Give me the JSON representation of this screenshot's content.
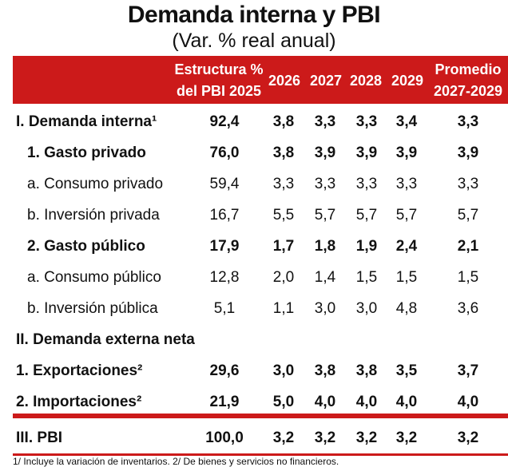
{
  "title": "Demanda interna y PBI",
  "subtitle": "(Var. % real anual)",
  "header": {
    "structure_line1": "Estructura %",
    "structure_line2": "del PBI 2025",
    "y2026": "2026",
    "y2027": "2027",
    "y2028": "2028",
    "y2029": "2029",
    "avg_line1": "Promedio",
    "avg_line2": "2027-2029"
  },
  "rows": [
    {
      "label": "I. Demanda interna¹",
      "bold": true,
      "indent": 0,
      "values": [
        "92,4",
        "3,8",
        "3,3",
        "3,3",
        "3,4",
        "3,3"
      ]
    },
    {
      "label": "1. Gasto privado",
      "bold": true,
      "indent": 1,
      "values": [
        "76,0",
        "3,8",
        "3,9",
        "3,9",
        "3,9",
        "3,9"
      ]
    },
    {
      "label": "a. Consumo privado",
      "bold": false,
      "indent": 1,
      "values": [
        "59,4",
        "3,3",
        "3,3",
        "3,3",
        "3,3",
        "3,3"
      ]
    },
    {
      "label": "b.  Inversión privada",
      "bold": false,
      "indent": 1,
      "values": [
        "16,7",
        "5,5",
        "5,7",
        "5,7",
        "5,7",
        "5,7"
      ]
    },
    {
      "label": "2. Gasto público",
      "bold": true,
      "indent": 1,
      "values": [
        "17,9",
        "1,7",
        "1,8",
        "1,9",
        "2,4",
        "2,1"
      ]
    },
    {
      "label": "a. Consumo público",
      "bold": false,
      "indent": 1,
      "values": [
        "12,8",
        "2,0",
        "1,4",
        "1,5",
        "1,5",
        "1,5"
      ]
    },
    {
      "label": "b. Inversión pública",
      "bold": false,
      "indent": 1,
      "values": [
        "5,1",
        "1,1",
        "3,0",
        "3,0",
        "4,8",
        "3,6"
      ]
    },
    {
      "label": "II. Demanda externa neta",
      "bold": true,
      "indent": 0,
      "values": [
        "",
        "",
        "",
        "",
        "",
        ""
      ]
    },
    {
      "label": "1. Exportaciones²",
      "bold": true,
      "indent": 0,
      "values": [
        "29,6",
        "3,0",
        "3,8",
        "3,8",
        "3,5",
        "3,7"
      ]
    },
    {
      "label": "2. Importaciones²",
      "bold": true,
      "indent": 0,
      "values": [
        "21,9",
        "5,0",
        "4,0",
        "4,0",
        "4,0",
        "4,0"
      ]
    },
    {
      "label": "III. PBI",
      "bold": true,
      "indent": 0,
      "values": [
        "100,0",
        "3,2",
        "3,2",
        "3,2",
        "3,2",
        "3,2"
      ]
    }
  ],
  "footnote": "1/ Incluye la variación de inventarios. 2/ De bienes y servicios no financieros."
}
